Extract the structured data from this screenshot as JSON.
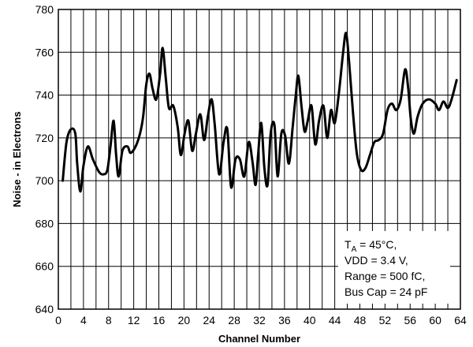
{
  "chart_data": {
    "type": "line",
    "title": "",
    "xlabel": "Channel Number",
    "ylabel": "Noise - in Electrons",
    "xlim": [
      0,
      64
    ],
    "ylim": [
      640,
      780
    ],
    "x_ticks": [
      0,
      4,
      8,
      12,
      16,
      20,
      24,
      28,
      32,
      36,
      40,
      44,
      48,
      52,
      56,
      60,
      64
    ],
    "y_ticks": [
      640,
      660,
      680,
      700,
      720,
      740,
      760,
      780
    ],
    "x_grid_step": 2,
    "y_grid_step": 20,
    "grid": true,
    "series": [
      {
        "name": "",
        "color": "#000000",
        "x": [
          0.7,
          1.3,
          2.0,
          2.7,
          3.0,
          3.5,
          4.0,
          4.7,
          5.5,
          6.5,
          7.2,
          7.8,
          8.3,
          8.8,
          9.2,
          9.6,
          10.2,
          11.0,
          11.5,
          12.3,
          13.0,
          13.5,
          14.0,
          14.5,
          15.0,
          15.6,
          16.2,
          16.6,
          17.1,
          17.6,
          18.3,
          19.0,
          19.5,
          20.1,
          20.7,
          21.3,
          21.9,
          22.6,
          23.2,
          23.8,
          24.4,
          24.9,
          25.6,
          26.3,
          26.9,
          27.5,
          28.2,
          28.9,
          29.6,
          30.3,
          30.9,
          31.4,
          31.8,
          32.3,
          32.8,
          33.3,
          33.8,
          34.4,
          34.9,
          35.5,
          36.1,
          36.7,
          37.3,
          37.8,
          38.2,
          38.7,
          39.2,
          39.7,
          40.3,
          40.9,
          41.5,
          42.2,
          42.8,
          43.4,
          44.0,
          44.7,
          45.3,
          45.8,
          46.3,
          46.9,
          47.5,
          48.2,
          48.9,
          49.6,
          50.3,
          51.0,
          51.7,
          52.4,
          53.1,
          53.8,
          54.5,
          55.2,
          55.7,
          56.1,
          56.6,
          57.2,
          58.0,
          59.0,
          60.0,
          60.6,
          61.3,
          62.0,
          62.6,
          63.4
        ],
        "y": [
          700,
          718,
          724,
          722,
          708,
          695,
          707,
          716,
          710,
          704,
          703,
          705,
          716,
          728,
          712,
          702,
          714,
          716,
          713,
          716,
          722,
          730,
          745,
          750,
          743,
          738,
          750,
          762,
          748,
          734,
          735,
          725,
          712,
          722,
          728,
          714,
          722,
          731,
          719,
          730,
          738,
          726,
          703,
          718,
          724,
          697,
          710,
          710,
          702,
          718,
          709,
          698,
          712,
          727,
          706,
          698,
          722,
          726,
          702,
          722,
          721,
          708,
          725,
          740,
          749,
          735,
          723,
          728,
          735,
          717,
          728,
          735,
          720,
          733,
          727,
          742,
          759,
          769,
          755,
          732,
          713,
          705,
          706,
          712,
          718,
          719,
          722,
          733,
          736,
          733,
          738,
          752,
          743,
          729,
          722,
          730,
          736,
          738,
          736,
          733,
          737,
          734,
          738,
          747
        ]
      }
    ],
    "annotation": {
      "lines": [
        {
          "main": "T",
          "sub": "A",
          "rest": " = 45°C,"
        },
        {
          "main": "VDD = 3.4 V,",
          "sub": "",
          "rest": ""
        },
        {
          "main": "Range = 500 fC,",
          "sub": "",
          "rest": ""
        },
        {
          "main": "Bus Cap = 24 pF",
          "sub": "",
          "rest": ""
        }
      ],
      "position": "bottom-right"
    }
  }
}
